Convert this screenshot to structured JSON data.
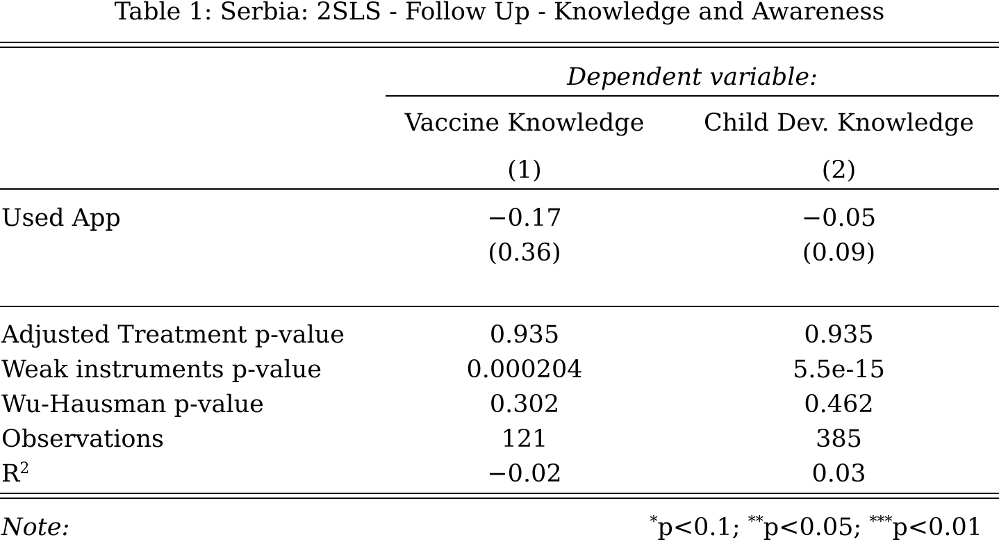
{
  "caption": "Table 1: Serbia: 2SLS - Follow Up - Knowledge and Awareness",
  "header": {
    "dependent_variable": "Dependent variable:",
    "columns": [
      {
        "name": "Vaccine Knowledge",
        "number": "(1)"
      },
      {
        "name": "Child Dev. Knowledge",
        "number": "(2)"
      }
    ]
  },
  "coefficients": [
    {
      "label": "Used App",
      "values": [
        "−0.17",
        "−0.05"
      ],
      "std_errors": [
        "(0.36)",
        "(0.09)"
      ]
    }
  ],
  "stats": [
    {
      "label": "Adjusted Treatment p-value",
      "values": [
        "0.935",
        "0.935"
      ]
    },
    {
      "label": "Weak instruments p-value",
      "values": [
        "0.000204",
        "5.5e-15"
      ]
    },
    {
      "label": "Wu-Hausman p-value",
      "values": [
        "0.302",
        "0.462"
      ]
    },
    {
      "label": "Observations",
      "values": [
        "121",
        "385"
      ]
    },
    {
      "label": "R",
      "label_superscript": "2",
      "values": [
        "−0.02",
        "0.03"
      ]
    }
  ],
  "note": {
    "label": "Note:",
    "items": [
      {
        "stars": "*",
        "text": "p<0.1; "
      },
      {
        "stars": "**",
        "text": "p<0.05; "
      },
      {
        "stars": "***",
        "text": "p<0.01"
      }
    ]
  }
}
